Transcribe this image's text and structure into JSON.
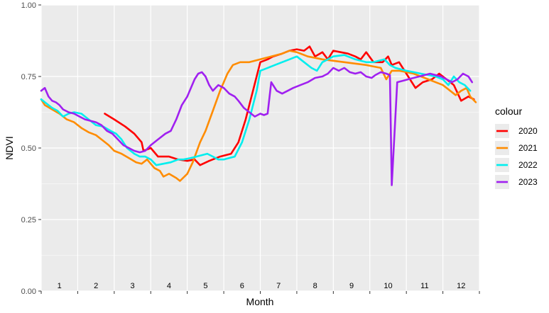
{
  "chart_data": {
    "type": "line",
    "title": "",
    "xlabel": "Month",
    "ylabel": "NDVI",
    "ylim": [
      0,
      1
    ],
    "xlim": [
      0,
      12
    ],
    "grid": true,
    "legend_title": "colour",
    "legend_position": "right",
    "month_labels": [
      "1",
      "2",
      "3",
      "4",
      "5",
      "6",
      "7",
      "8",
      "9",
      "10",
      "11",
      "12"
    ],
    "y_ticks": [
      0,
      0.25,
      0.5,
      0.75,
      1
    ],
    "y_tick_labels": [
      "0.00",
      "0.25",
      "0.50",
      "0.75",
      "1.00"
    ],
    "series": [
      {
        "name": "2020",
        "color": "#ff0000",
        "points": [
          [
            1.74,
            0.62
          ],
          [
            2.0,
            0.6
          ],
          [
            2.3,
            0.575
          ],
          [
            2.55,
            0.55
          ],
          [
            2.75,
            0.52
          ],
          [
            2.8,
            0.49
          ],
          [
            3.0,
            0.5
          ],
          [
            3.2,
            0.47
          ],
          [
            3.5,
            0.47
          ],
          [
            3.75,
            0.46
          ],
          [
            4.0,
            0.455
          ],
          [
            4.2,
            0.46
          ],
          [
            4.35,
            0.44
          ],
          [
            4.6,
            0.455
          ],
          [
            4.9,
            0.47
          ],
          [
            5.2,
            0.48
          ],
          [
            5.4,
            0.52
          ],
          [
            5.6,
            0.6
          ],
          [
            5.8,
            0.7
          ],
          [
            6.0,
            0.8
          ],
          [
            6.2,
            0.81
          ],
          [
            6.35,
            0.82
          ],
          [
            6.6,
            0.83
          ],
          [
            6.8,
            0.84
          ],
          [
            7.0,
            0.845
          ],
          [
            7.2,
            0.84
          ],
          [
            7.35,
            0.855
          ],
          [
            7.5,
            0.82
          ],
          [
            7.7,
            0.835
          ],
          [
            7.85,
            0.81
          ],
          [
            8.0,
            0.84
          ],
          [
            8.2,
            0.835
          ],
          [
            8.4,
            0.83
          ],
          [
            8.6,
            0.82
          ],
          [
            8.75,
            0.81
          ],
          [
            8.9,
            0.835
          ],
          [
            9.1,
            0.8
          ],
          [
            9.35,
            0.8
          ],
          [
            9.5,
            0.82
          ],
          [
            9.6,
            0.79
          ],
          [
            9.8,
            0.8
          ],
          [
            10.0,
            0.76
          ],
          [
            10.25,
            0.71
          ],
          [
            10.45,
            0.73
          ],
          [
            10.7,
            0.74
          ],
          [
            10.9,
            0.76
          ],
          [
            11.1,
            0.74
          ],
          [
            11.3,
            0.72
          ],
          [
            11.5,
            0.665
          ],
          [
            11.7,
            0.68
          ],
          [
            11.85,
            0.67
          ]
        ]
      },
      {
        "name": "2021",
        "color": "#ff8c00",
        "points": [
          [
            0.0,
            0.67
          ],
          [
            0.1,
            0.65
          ],
          [
            0.3,
            0.635
          ],
          [
            0.5,
            0.62
          ],
          [
            0.7,
            0.6
          ],
          [
            0.9,
            0.59
          ],
          [
            1.1,
            0.57
          ],
          [
            1.3,
            0.555
          ],
          [
            1.5,
            0.545
          ],
          [
            1.7,
            0.525
          ],
          [
            1.85,
            0.51
          ],
          [
            2.0,
            0.49
          ],
          [
            2.2,
            0.48
          ],
          [
            2.4,
            0.465
          ],
          [
            2.6,
            0.45
          ],
          [
            2.75,
            0.445
          ],
          [
            2.9,
            0.46
          ],
          [
            3.1,
            0.43
          ],
          [
            3.25,
            0.42
          ],
          [
            3.35,
            0.4
          ],
          [
            3.5,
            0.41
          ],
          [
            3.7,
            0.395
          ],
          [
            3.8,
            0.385
          ],
          [
            4.0,
            0.41
          ],
          [
            4.15,
            0.45
          ],
          [
            4.35,
            0.52
          ],
          [
            4.5,
            0.56
          ],
          [
            4.7,
            0.63
          ],
          [
            4.9,
            0.7
          ],
          [
            5.1,
            0.76
          ],
          [
            5.25,
            0.79
          ],
          [
            5.45,
            0.8
          ],
          [
            5.7,
            0.8
          ],
          [
            6.0,
            0.81
          ],
          [
            6.3,
            0.82
          ],
          [
            6.6,
            0.83
          ],
          [
            6.8,
            0.84
          ],
          [
            7.0,
            0.835
          ],
          [
            7.3,
            0.82
          ],
          [
            7.5,
            0.815
          ],
          [
            7.7,
            0.81
          ],
          [
            8.0,
            0.805
          ],
          [
            8.3,
            0.8
          ],
          [
            8.6,
            0.795
          ],
          [
            8.9,
            0.79
          ],
          [
            9.1,
            0.785
          ],
          [
            9.3,
            0.78
          ],
          [
            9.45,
            0.74
          ],
          [
            9.6,
            0.77
          ],
          [
            9.8,
            0.77
          ],
          [
            10.0,
            0.765
          ],
          [
            10.2,
            0.76
          ],
          [
            10.4,
            0.75
          ],
          [
            10.6,
            0.74
          ],
          [
            10.8,
            0.73
          ],
          [
            11.0,
            0.72
          ],
          [
            11.2,
            0.7
          ],
          [
            11.35,
            0.685
          ],
          [
            11.5,
            0.7
          ],
          [
            11.65,
            0.71
          ],
          [
            11.75,
            0.68
          ],
          [
            11.9,
            0.66
          ]
        ]
      },
      {
        "name": "2022",
        "color": "#00eeee",
        "points": [
          [
            0.0,
            0.67
          ],
          [
            0.15,
            0.655
          ],
          [
            0.3,
            0.64
          ],
          [
            0.45,
            0.63
          ],
          [
            0.6,
            0.61
          ],
          [
            0.75,
            0.62
          ],
          [
            0.9,
            0.625
          ],
          [
            1.1,
            0.62
          ],
          [
            1.3,
            0.6
          ],
          [
            1.5,
            0.58
          ],
          [
            1.7,
            0.575
          ],
          [
            1.9,
            0.56
          ],
          [
            2.05,
            0.55
          ],
          [
            2.2,
            0.53
          ],
          [
            2.35,
            0.5
          ],
          [
            2.55,
            0.48
          ],
          [
            2.7,
            0.47
          ],
          [
            2.85,
            0.47
          ],
          [
            3.0,
            0.46
          ],
          [
            3.15,
            0.44
          ],
          [
            3.35,
            0.445
          ],
          [
            3.55,
            0.45
          ],
          [
            3.75,
            0.46
          ],
          [
            3.9,
            0.46
          ],
          [
            4.1,
            0.465
          ],
          [
            4.25,
            0.47
          ],
          [
            4.4,
            0.475
          ],
          [
            4.55,
            0.48
          ],
          [
            4.7,
            0.47
          ],
          [
            4.85,
            0.46
          ],
          [
            5.0,
            0.46
          ],
          [
            5.15,
            0.465
          ],
          [
            5.3,
            0.47
          ],
          [
            5.5,
            0.52
          ],
          [
            5.7,
            0.6
          ],
          [
            5.9,
            0.7
          ],
          [
            6.0,
            0.77
          ],
          [
            6.2,
            0.78
          ],
          [
            6.4,
            0.79
          ],
          [
            6.6,
            0.8
          ],
          [
            6.8,
            0.81
          ],
          [
            7.0,
            0.82
          ],
          [
            7.2,
            0.8
          ],
          [
            7.4,
            0.78
          ],
          [
            7.55,
            0.77
          ],
          [
            7.7,
            0.8
          ],
          [
            7.85,
            0.81
          ],
          [
            8.0,
            0.82
          ],
          [
            8.3,
            0.825
          ],
          [
            8.6,
            0.81
          ],
          [
            8.9,
            0.8
          ],
          [
            9.1,
            0.8
          ],
          [
            9.4,
            0.81
          ],
          [
            9.55,
            0.79
          ],
          [
            9.7,
            0.78
          ],
          [
            9.85,
            0.775
          ],
          [
            10.0,
            0.77
          ],
          [
            10.2,
            0.765
          ],
          [
            10.4,
            0.76
          ],
          [
            10.6,
            0.755
          ],
          [
            10.8,
            0.75
          ],
          [
            11.0,
            0.74
          ],
          [
            11.15,
            0.72
          ],
          [
            11.3,
            0.75
          ],
          [
            11.45,
            0.73
          ],
          [
            11.6,
            0.72
          ],
          [
            11.75,
            0.7
          ]
        ]
      },
      {
        "name": "2023",
        "color": "#a020f0",
        "points": [
          [
            0.0,
            0.7
          ],
          [
            0.1,
            0.71
          ],
          [
            0.2,
            0.68
          ],
          [
            0.3,
            0.665
          ],
          [
            0.4,
            0.66
          ],
          [
            0.5,
            0.65
          ],
          [
            0.6,
            0.635
          ],
          [
            0.75,
            0.625
          ],
          [
            0.9,
            0.62
          ],
          [
            1.05,
            0.61
          ],
          [
            1.2,
            0.6
          ],
          [
            1.35,
            0.595
          ],
          [
            1.5,
            0.59
          ],
          [
            1.65,
            0.58
          ],
          [
            1.8,
            0.56
          ],
          [
            1.95,
            0.55
          ],
          [
            2.1,
            0.53
          ],
          [
            2.25,
            0.51
          ],
          [
            2.4,
            0.5
          ],
          [
            2.55,
            0.49
          ],
          [
            2.7,
            0.485
          ],
          [
            2.85,
            0.49
          ],
          [
            3.0,
            0.51
          ],
          [
            3.2,
            0.53
          ],
          [
            3.4,
            0.55
          ],
          [
            3.55,
            0.56
          ],
          [
            3.7,
            0.6
          ],
          [
            3.85,
            0.65
          ],
          [
            4.0,
            0.68
          ],
          [
            4.1,
            0.71
          ],
          [
            4.2,
            0.74
          ],
          [
            4.3,
            0.76
          ],
          [
            4.4,
            0.765
          ],
          [
            4.5,
            0.75
          ],
          [
            4.6,
            0.72
          ],
          [
            4.7,
            0.7
          ],
          [
            4.85,
            0.72
          ],
          [
            5.0,
            0.71
          ],
          [
            5.15,
            0.69
          ],
          [
            5.3,
            0.68
          ],
          [
            5.4,
            0.665
          ],
          [
            5.55,
            0.64
          ],
          [
            5.7,
            0.625
          ],
          [
            5.85,
            0.61
          ],
          [
            6.0,
            0.62
          ],
          [
            6.1,
            0.615
          ],
          [
            6.2,
            0.62
          ],
          [
            6.3,
            0.73
          ],
          [
            6.45,
            0.7
          ],
          [
            6.6,
            0.69
          ],
          [
            6.75,
            0.7
          ],
          [
            6.9,
            0.71
          ],
          [
            7.1,
            0.72
          ],
          [
            7.3,
            0.73
          ],
          [
            7.5,
            0.745
          ],
          [
            7.7,
            0.75
          ],
          [
            7.85,
            0.76
          ],
          [
            8.0,
            0.78
          ],
          [
            8.15,
            0.77
          ],
          [
            8.3,
            0.78
          ],
          [
            8.45,
            0.765
          ],
          [
            8.6,
            0.76
          ],
          [
            8.75,
            0.765
          ],
          [
            8.9,
            0.75
          ],
          [
            9.05,
            0.745
          ],
          [
            9.15,
            0.755
          ],
          [
            9.3,
            0.765
          ],
          [
            9.45,
            0.76
          ],
          [
            9.55,
            0.755
          ],
          [
            9.6,
            0.37
          ],
          [
            9.75,
            0.73
          ],
          [
            9.9,
            0.735
          ],
          [
            10.05,
            0.74
          ],
          [
            10.2,
            0.745
          ],
          [
            10.35,
            0.75
          ],
          [
            10.5,
            0.755
          ],
          [
            10.65,
            0.76
          ],
          [
            10.8,
            0.755
          ],
          [
            10.95,
            0.75
          ],
          [
            11.1,
            0.74
          ],
          [
            11.25,
            0.73
          ],
          [
            11.4,
            0.74
          ],
          [
            11.55,
            0.76
          ],
          [
            11.7,
            0.75
          ],
          [
            11.8,
            0.73
          ]
        ]
      }
    ]
  }
}
